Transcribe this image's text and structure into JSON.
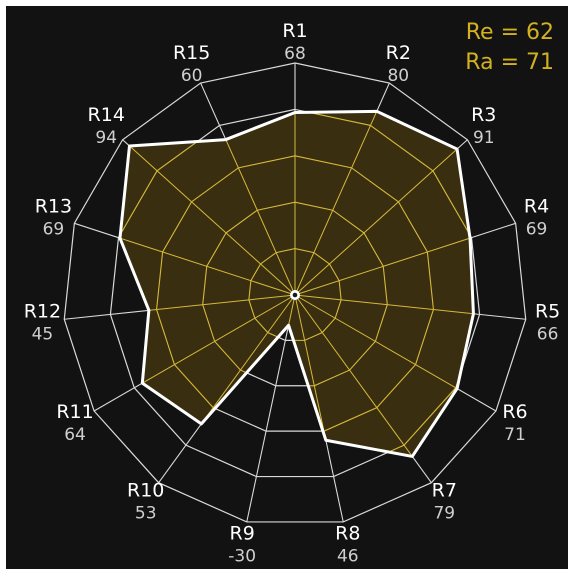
{
  "summary": {
    "re_text": "Re = 62",
    "ra_text": "Ra = 71"
  },
  "colors": {
    "background": "#121212",
    "grid": "#d9d9d9",
    "inner_grid": "#d6b93a",
    "fill": "#3a2e10",
    "outline": "#ffffff",
    "label": "#ffffff",
    "value_label": "#cfcfcf",
    "summary": "#d3b11f"
  },
  "chart_data": {
    "type": "radar",
    "title": "",
    "rings": 5,
    "range": [
      -50,
      100
    ],
    "categories": [
      "R1",
      "R2",
      "R3",
      "R4",
      "R5",
      "R6",
      "R7",
      "R8",
      "R9",
      "R10",
      "R11",
      "R12",
      "R13",
      "R14",
      "R15"
    ],
    "values": [
      68,
      80,
      91,
      69,
      66,
      71,
      79,
      46,
      -30,
      53,
      64,
      45,
      69,
      94,
      60
    ],
    "value_labels": [
      "68",
      "80",
      "91",
      "69",
      "66",
      "71",
      "79",
      "46",
      "-30",
      "53",
      "64",
      "45",
      "69",
      "94",
      "60"
    ],
    "grid": true
  }
}
